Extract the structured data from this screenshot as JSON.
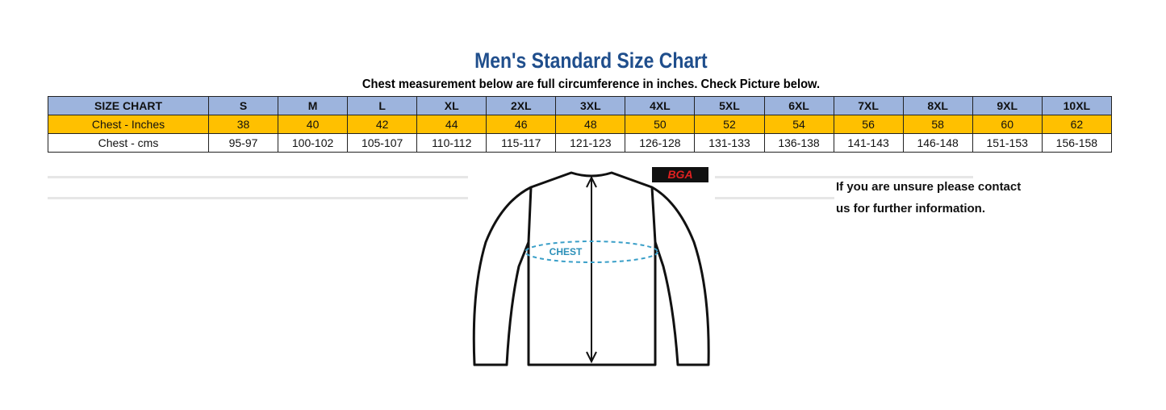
{
  "header": {
    "title": "Men's Standard Size Chart",
    "subtitle": "Chest measurement below are full circumference in inches. Check Picture below."
  },
  "table": {
    "columns": [
      "SIZE CHART",
      "S",
      "M",
      "L",
      "XL",
      "2XL",
      "3XL",
      "4XL",
      "5XL",
      "6XL",
      "7XL",
      "8XL",
      "9XL",
      "10XL"
    ],
    "rows": [
      [
        "Chest - Inches",
        "38",
        "40",
        "42",
        "44",
        "46",
        "48",
        "50",
        "52",
        "54",
        "56",
        "58",
        "60",
        "62"
      ],
      [
        "Chest - cms",
        "95-97",
        "100-102",
        "105-107",
        "110-112",
        "115-117",
        "121-123",
        "126-128",
        "131-133",
        "136-138",
        "141-143",
        "146-148",
        "151-153",
        "156-158"
      ]
    ]
  },
  "figure": {
    "label": "CHEST",
    "logo": "BGA"
  },
  "note": {
    "lines": [
      "If you are unsure please contact",
      "us for further information."
    ]
  }
}
